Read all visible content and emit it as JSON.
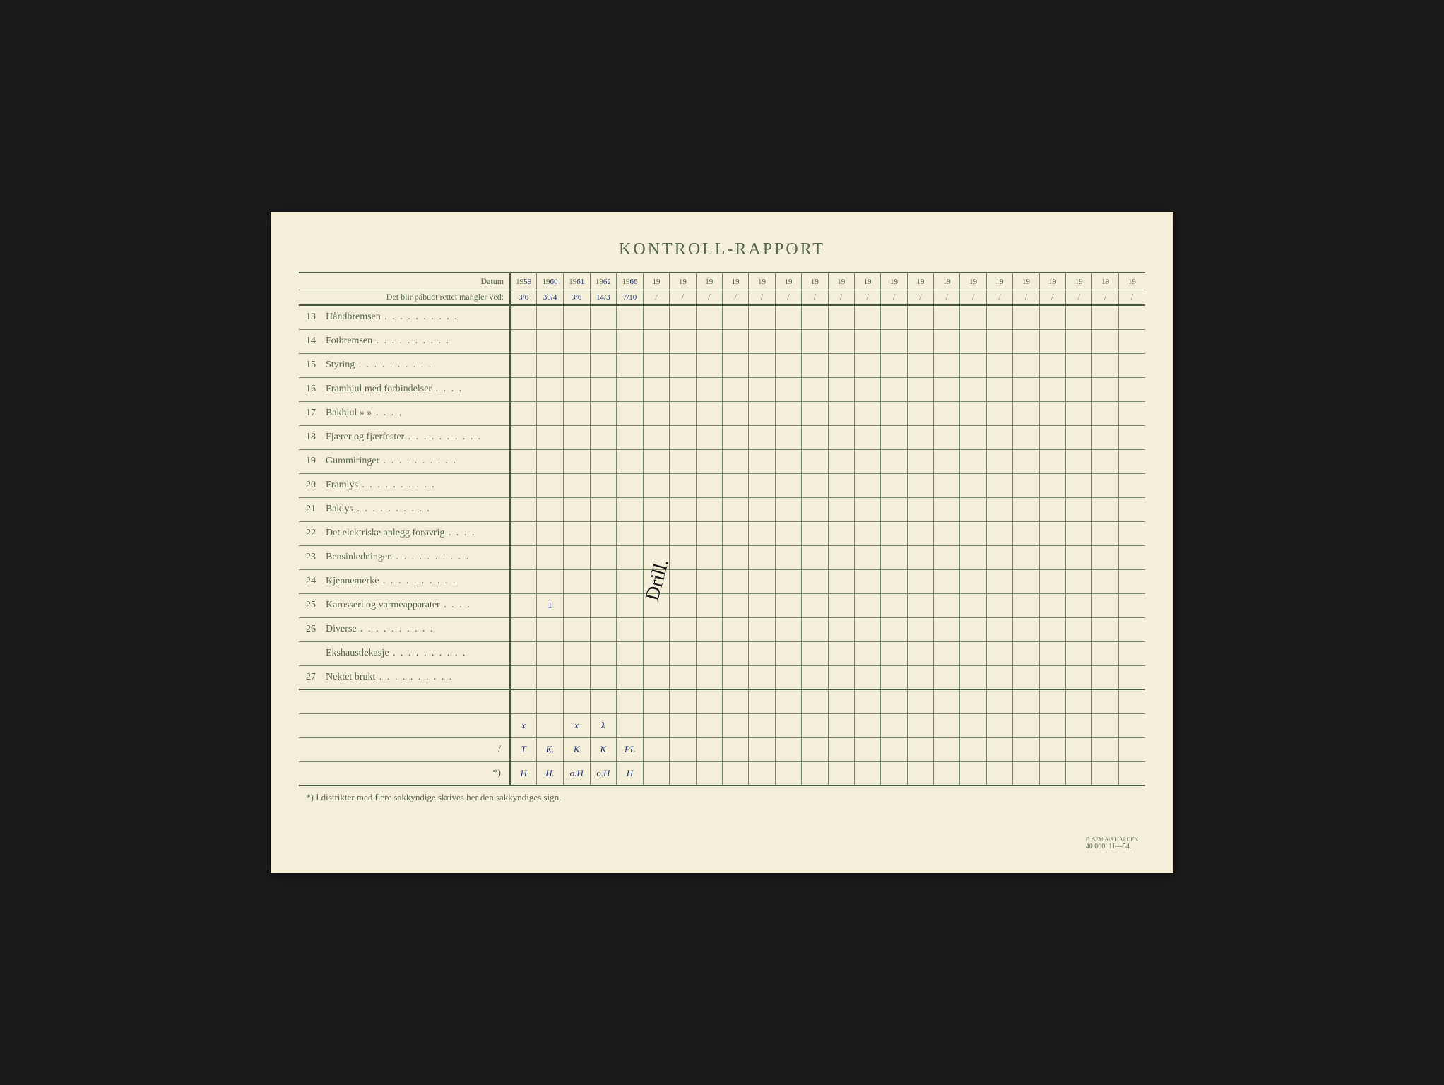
{
  "title": "KONTROLL-RAPPORT",
  "header": {
    "datum_label": "Datum",
    "mangler_label": "Det blir påbudt rettet mangler ved:",
    "year_prefix": "19",
    "slash": "/"
  },
  "handwritten_years": [
    "59",
    "60",
    "61",
    "62",
    "66"
  ],
  "handwritten_dates": [
    "3/6",
    "30/4",
    "3/6",
    "14/3",
    "7/10"
  ],
  "items": [
    {
      "num": "13",
      "label": "Håndbremsen",
      "dots": "long"
    },
    {
      "num": "14",
      "label": "Fotbremsen",
      "dots": "long"
    },
    {
      "num": "15",
      "label": "Styring",
      "dots": "long"
    },
    {
      "num": "16",
      "label": "Framhjul med forbindelser",
      "dots": "short"
    },
    {
      "num": "17",
      "label": "Bakhjul       »           »",
      "dots": "short"
    },
    {
      "num": "18",
      "label": "Fjærer og fjærfester",
      "dots": "long"
    },
    {
      "num": "19",
      "label": "Gummiringer",
      "dots": "long"
    },
    {
      "num": "20",
      "label": "Framlys",
      "dots": "long"
    },
    {
      "num": "21",
      "label": "Baklys",
      "dots": "long"
    },
    {
      "num": "22",
      "label": "Det elektriske anlegg forøvrig",
      "dots": "short"
    },
    {
      "num": "23",
      "label": "Bensinledningen",
      "dots": "long"
    },
    {
      "num": "24",
      "label": "Kjennemerke",
      "dots": "long"
    },
    {
      "num": "25",
      "label": "Karosseri og varmeapparater",
      "dots": "short"
    },
    {
      "num": "26",
      "label": "Diverse",
      "dots": "long"
    },
    {
      "num": "",
      "label": "Ekshaustlekasje",
      "dots": "long"
    },
    {
      "num": "27",
      "label": "Nektet brukt",
      "dots": "long"
    }
  ],
  "bottom_rows": [
    {
      "label": "",
      "cells": [
        "x",
        "",
        "x",
        "λ",
        "",
        "",
        "",
        "",
        "",
        "",
        "",
        "",
        "",
        "",
        "",
        "",
        "",
        "",
        "",
        "",
        "",
        "",
        "",
        ""
      ]
    },
    {
      "label": "/",
      "cells": [
        "T",
        "K.",
        "K",
        "K",
        "PL",
        "",
        "",
        "",
        "",
        "",
        "",
        "",
        "",
        "",
        "",
        "",
        "",
        "",
        "",
        "",
        "",
        "",
        "",
        ""
      ]
    },
    {
      "label": "*)",
      "cells": [
        "H",
        "H.",
        "o.H",
        "o.H",
        "H",
        "",
        "",
        "",
        "",
        "",
        "",
        "",
        "",
        "",
        "",
        "",
        "",
        "",
        "",
        "",
        "",
        "",
        "",
        ""
      ]
    }
  ],
  "item25_mark": "1",
  "vertical_text": "Drill.",
  "footnote": "*) I distrikter med flere sakkyndige skrives her den sakkyndiges sign.",
  "print_info": {
    "publisher": "E. SEM A/S HALDEN",
    "numbers": "40 000.   11—54."
  },
  "colors": {
    "paper": "#f4efd8",
    "ink_print": "#5a6b4a",
    "ink_hand": "#2a3a7a",
    "border_heavy": "#4a5a3a",
    "border_light": "#7a8a6a"
  },
  "num_year_cols": 24
}
